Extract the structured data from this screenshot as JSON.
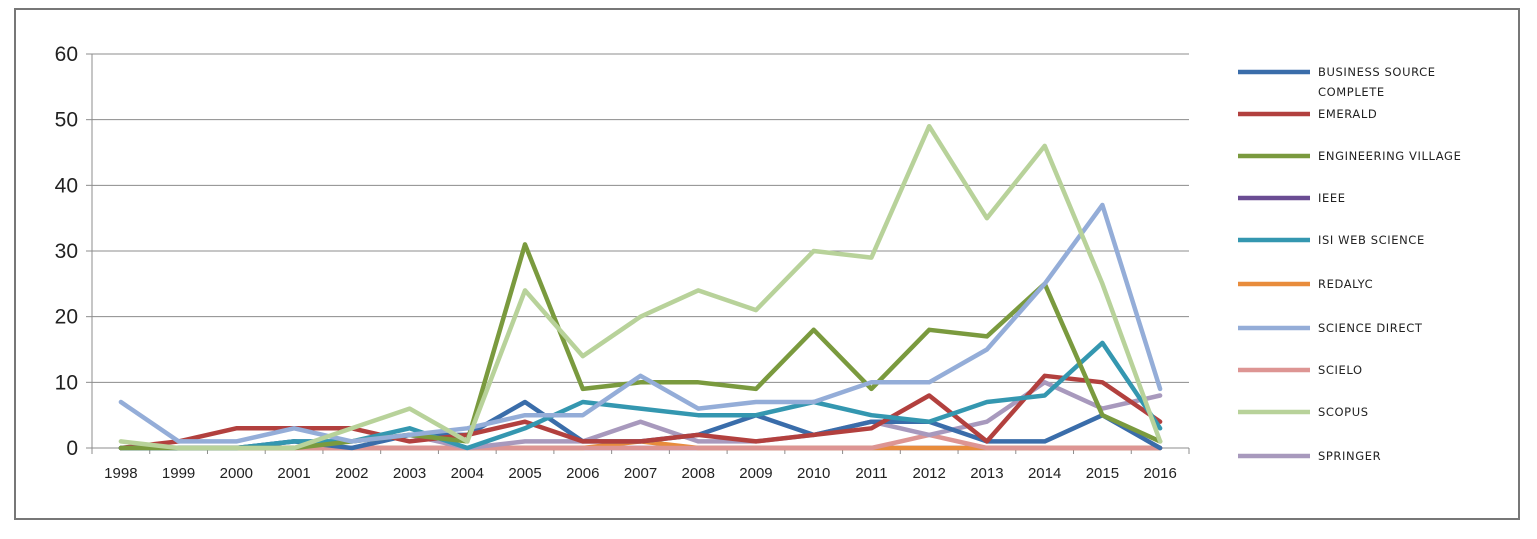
{
  "chart_data": {
    "type": "line",
    "title": "",
    "xlabel": "",
    "ylabel": "",
    "ylim": [
      0,
      60
    ],
    "y_ticks": [
      "0",
      "10",
      "20",
      "30",
      "40",
      "50",
      "60"
    ],
    "grid": "horizontal",
    "legend_position": "right",
    "categories": [
      "1998",
      "1999",
      "2000",
      "2001",
      "2002",
      "2003",
      "2004",
      "2005",
      "2006",
      "2007",
      "2008",
      "2009",
      "2010",
      "2011",
      "2012",
      "2013",
      "2014",
      "2015",
      "2016"
    ],
    "series": [
      {
        "name": "BUSINESS SOURCE COMPLETE",
        "color": "#3A6DAA",
        "values": [
          0,
          0,
          0,
          1,
          0,
          2,
          2,
          7,
          1,
          1,
          2,
          5,
          2,
          4,
          4,
          1,
          1,
          5,
          0
        ]
      },
      {
        "name": "EMERALD",
        "color": "#B2403E",
        "values": [
          0,
          1,
          3,
          3,
          3,
          1,
          2,
          4,
          1,
          1,
          2,
          1,
          2,
          3,
          8,
          1,
          11,
          10,
          4
        ]
      },
      {
        "name": "ENGINEERING VILLAGE",
        "color": "#7A9A3E",
        "values": [
          0,
          0,
          0,
          0,
          1,
          2,
          1,
          31,
          9,
          10,
          10,
          9,
          18,
          9,
          18,
          17,
          25,
          5,
          1
        ]
      },
      {
        "name": "IEEE",
        "color": "#6A4C93",
        "values": [
          0,
          0,
          0,
          0,
          0,
          0,
          0,
          0,
          0,
          0,
          0,
          0,
          0,
          0,
          0,
          0,
          0,
          0,
          0
        ]
      },
      {
        "name": "ISI WEB SCIENCE",
        "color": "#3497B0",
        "values": [
          0,
          0,
          0,
          1,
          1,
          3,
          0,
          3,
          7,
          6,
          5,
          5,
          7,
          5,
          4,
          7,
          8,
          16,
          3
        ]
      },
      {
        "name": "REDALYC",
        "color": "#E88C3C",
        "values": [
          0,
          0,
          0,
          0,
          0,
          0,
          0,
          0,
          0,
          1,
          0,
          0,
          0,
          0,
          0,
          0,
          0,
          0,
          0
        ]
      },
      {
        "name": "SCIENCE DIRECT",
        "color": "#94ADD8",
        "values": [
          7,
          1,
          1,
          3,
          1,
          2,
          3,
          5,
          5,
          11,
          6,
          7,
          7,
          10,
          10,
          15,
          25,
          37,
          9
        ]
      },
      {
        "name": "SCIELO",
        "color": "#DD9593",
        "values": [
          0,
          0,
          0,
          0,
          0,
          0,
          0,
          0,
          0,
          0,
          0,
          0,
          0,
          0,
          2,
          0,
          0,
          0,
          0
        ]
      },
      {
        "name": "SCOPUS",
        "color": "#B8D29A",
        "values": [
          1,
          0,
          0,
          0,
          3,
          6,
          1,
          24,
          14,
          20,
          24,
          21,
          30,
          29,
          49,
          35,
          46,
          25,
          1
        ]
      },
      {
        "name": "SPRINGER",
        "color": "#A899BD",
        "values": [
          0,
          0,
          0,
          1,
          1,
          2,
          0,
          1,
          1,
          4,
          1,
          1,
          2,
          4,
          2,
          4,
          10,
          6,
          8
        ]
      }
    ]
  }
}
